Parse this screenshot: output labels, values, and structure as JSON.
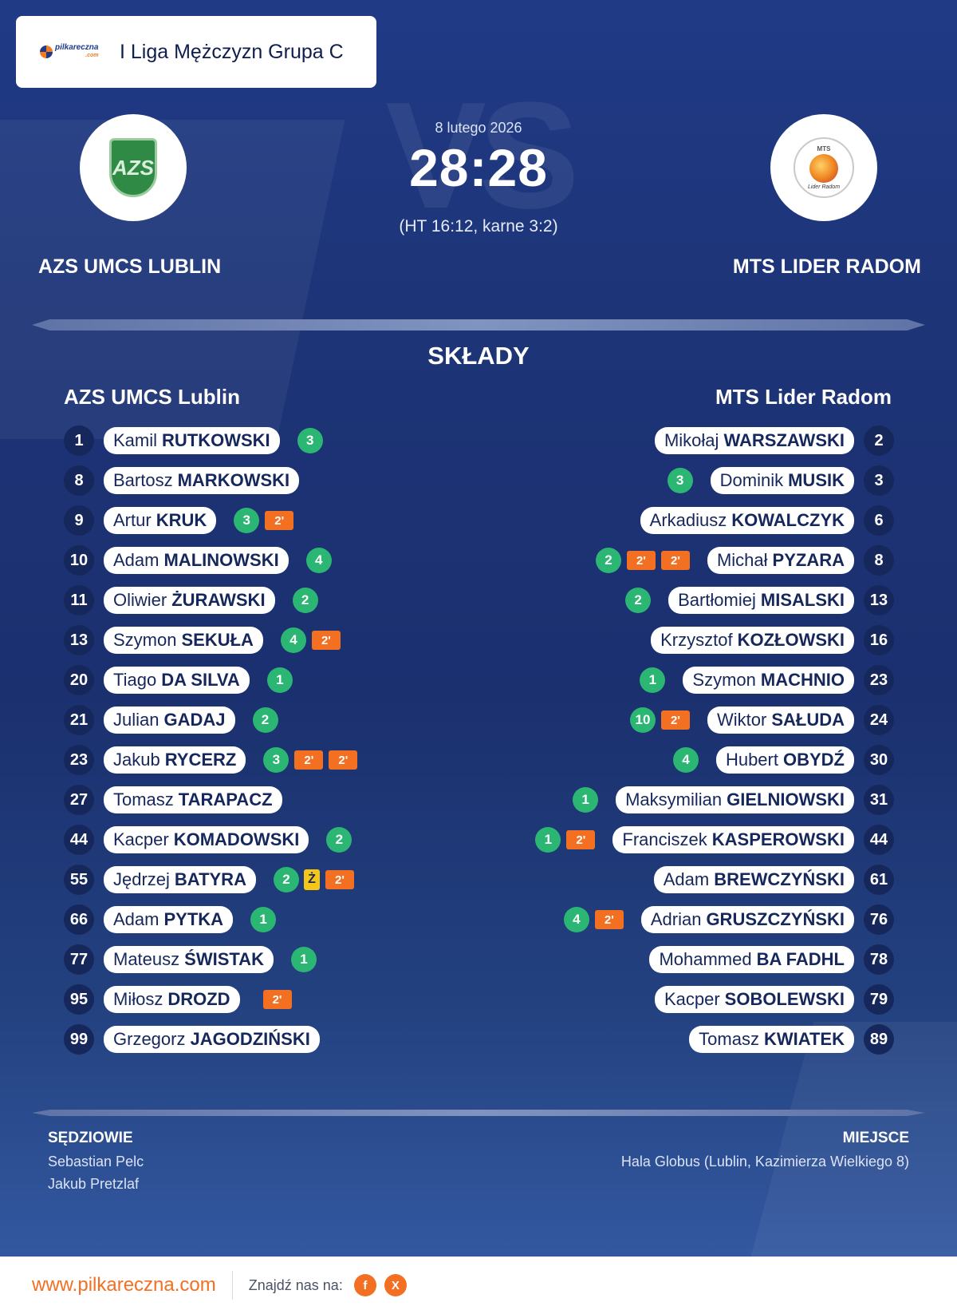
{
  "league": {
    "brand": "pilkareczna",
    "brand_sub": ".com",
    "name": "I Liga Mężczyzn Grupa C"
  },
  "match": {
    "date": "8 lutego 2026",
    "score": "28:28",
    "sub": "(HT 16:12, karne 3:2)",
    "home": "AZS UMCS LUBLIN",
    "away": "MTS LIDER RADOM",
    "home_logo_text": "AZS",
    "away_logo_top": "MTS",
    "away_logo_bottom": "Lider Radom"
  },
  "lineups": {
    "title": "SKŁADY",
    "home_title": "AZS UMCS Lublin",
    "away_title": "MTS Lider Radom",
    "home": [
      {
        "num": "1",
        "first": "Kamil",
        "last": "RUTKOWSKI",
        "goals": "3",
        "pens": 0,
        "yellow": ""
      },
      {
        "num": "8",
        "first": "Bartosz",
        "last": "MARKOWSKI",
        "goals": "",
        "pens": 0,
        "yellow": ""
      },
      {
        "num": "9",
        "first": "Artur",
        "last": "KRUK",
        "goals": "3",
        "pens": 1,
        "yellow": ""
      },
      {
        "num": "10",
        "first": "Adam",
        "last": "MALINOWSKI",
        "goals": "4",
        "pens": 0,
        "yellow": ""
      },
      {
        "num": "11",
        "first": "Oliwier",
        "last": "ŻURAWSKI",
        "goals": "2",
        "pens": 0,
        "yellow": ""
      },
      {
        "num": "13",
        "first": "Szymon",
        "last": "SEKUŁA",
        "goals": "4",
        "pens": 1,
        "yellow": ""
      },
      {
        "num": "20",
        "first": "Tiago",
        "last": "DA SILVA",
        "goals": "1",
        "pens": 0,
        "yellow": ""
      },
      {
        "num": "21",
        "first": "Julian",
        "last": "GADAJ",
        "goals": "2",
        "pens": 0,
        "yellow": ""
      },
      {
        "num": "23",
        "first": "Jakub",
        "last": "RYCERZ",
        "goals": "3",
        "pens": 2,
        "yellow": ""
      },
      {
        "num": "27",
        "first": "Tomasz",
        "last": "TARAPACZ",
        "goals": "",
        "pens": 0,
        "yellow": ""
      },
      {
        "num": "44",
        "first": "Kacper",
        "last": "KOMADOWSKI",
        "goals": "2",
        "pens": 0,
        "yellow": ""
      },
      {
        "num": "55",
        "first": "Jędrzej",
        "last": "BATYRA",
        "goals": "2",
        "pens": 1,
        "yellow": "Ż"
      },
      {
        "num": "66",
        "first": "Adam",
        "last": "PYTKA",
        "goals": "1",
        "pens": 0,
        "yellow": ""
      },
      {
        "num": "77",
        "first": "Mateusz",
        "last": "ŚWISTAK",
        "goals": "1",
        "pens": 0,
        "yellow": ""
      },
      {
        "num": "95",
        "first": "Miłosz",
        "last": "DROZD",
        "goals": "",
        "pens": 1,
        "yellow": ""
      },
      {
        "num": "99",
        "first": "Grzegorz",
        "last": "JAGODZIŃSKI",
        "goals": "",
        "pens": 0,
        "yellow": ""
      }
    ],
    "away": [
      {
        "num": "2",
        "first": "Mikołaj",
        "last": "WARSZAWSKI",
        "goals": "",
        "pens": 0
      },
      {
        "num": "3",
        "first": "Dominik",
        "last": "MUSIK",
        "goals": "3",
        "pens": 0
      },
      {
        "num": "6",
        "first": "Arkadiusz",
        "last": "KOWALCZYK",
        "goals": "",
        "pens": 0
      },
      {
        "num": "8",
        "first": "Michał",
        "last": "PYZARA",
        "goals": "2",
        "pens": 2
      },
      {
        "num": "13",
        "first": "Bartłomiej",
        "last": "MISALSKI",
        "goals": "2",
        "pens": 0
      },
      {
        "num": "16",
        "first": "Krzysztof",
        "last": "KOZŁOWSKI",
        "goals": "",
        "pens": 0
      },
      {
        "num": "23",
        "first": "Szymon",
        "last": "MACHNIO",
        "goals": "1",
        "pens": 0
      },
      {
        "num": "24",
        "first": "Wiktor",
        "last": "SAŁUDA",
        "goals": "10",
        "pens": 1
      },
      {
        "num": "30",
        "first": "Hubert",
        "last": "OBYDŹ",
        "goals": "4",
        "pens": 0
      },
      {
        "num": "31",
        "first": "Maksymilian",
        "last": "GIELNIOWSKI",
        "goals": "1",
        "pens": 0
      },
      {
        "num": "44",
        "first": "Franciszek",
        "last": "KASPEROWSKI",
        "goals": "1",
        "pens": 1
      },
      {
        "num": "61",
        "first": "Adam",
        "last": "BREWCZYŃSKI",
        "goals": "",
        "pens": 0
      },
      {
        "num": "76",
        "first": "Adrian",
        "last": "GRUSZCZYŃSKI",
        "goals": "4",
        "pens": 1
      },
      {
        "num": "78",
        "first": "Mohammed",
        "last": "BA FADHL",
        "goals": "",
        "pens": 0
      },
      {
        "num": "79",
        "first": "Kacper",
        "last": "SOBOLEWSKI",
        "goals": "",
        "pens": 0
      },
      {
        "num": "89",
        "first": "Tomasz",
        "last": "KWIATEK",
        "goals": "",
        "pens": 0
      }
    ],
    "penalty_label": "2'"
  },
  "info": {
    "referees_label": "SĘDZIOWIE",
    "referees": [
      "Sebastian Pelc",
      "Jakub Pretzlaf"
    ],
    "venue_label": "MIEJSCE",
    "venue": "Hala Globus (Lublin, Kazimierza Wielkiego 8)"
  },
  "footer": {
    "site": "www.pilkareczna.com",
    "find_us": "Znajdź nas na:",
    "social": [
      {
        "label": "f",
        "icon": "facebook-icon"
      },
      {
        "label": "X",
        "icon": "x-icon"
      }
    ]
  },
  "colors": {
    "background": "#1d3477",
    "goal_badge": "#2bb673",
    "penalty_badge": "#f36f21",
    "yellow_card": "#f5c518",
    "accent": "#f36f21"
  }
}
